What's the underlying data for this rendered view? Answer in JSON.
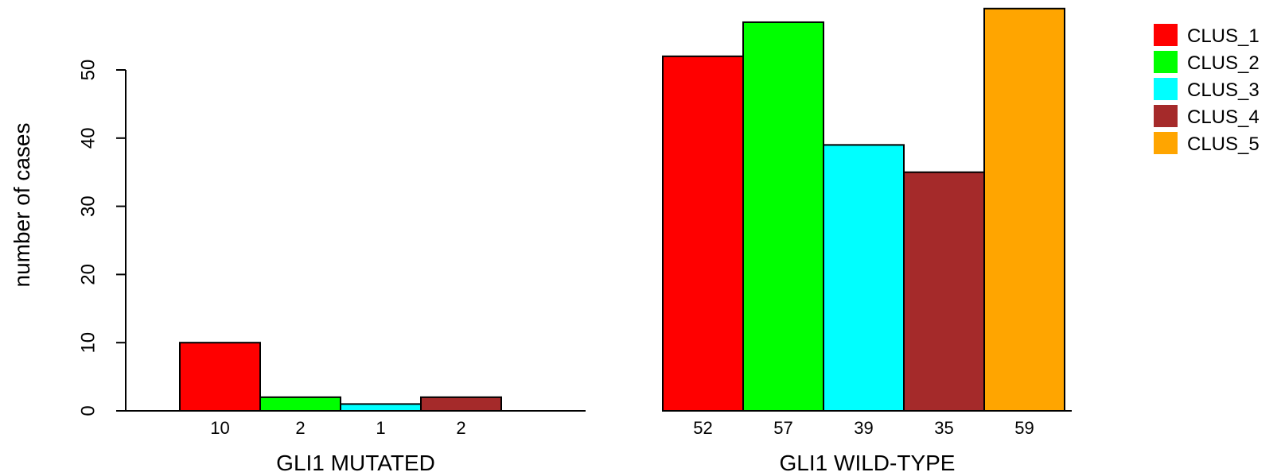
{
  "chart_data": {
    "type": "bar",
    "ylabel": "number of cases",
    "ylim": [
      0,
      60
    ],
    "yticks": [
      0,
      10,
      20,
      30,
      40,
      50
    ],
    "grid": false,
    "legend_position": "top-right",
    "legend": [
      {
        "name": "CLUS_1",
        "color": "#ff0000"
      },
      {
        "name": "CLUS_2",
        "color": "#00ff00"
      },
      {
        "name": "CLUS_3",
        "color": "#00ffff"
      },
      {
        "name": "CLUS_4",
        "color": "#a52a2a"
      },
      {
        "name": "CLUS_5",
        "color": "#ffa500"
      }
    ],
    "groups": [
      {
        "label": "GLI1 MUTATED",
        "values": [
          10,
          2,
          1,
          2,
          0
        ],
        "value_labels": [
          "10",
          "2",
          "1",
          "2",
          ""
        ]
      },
      {
        "label": "GLI1 WILD-TYPE",
        "values": [
          52,
          57,
          39,
          35,
          59
        ],
        "value_labels": [
          "52",
          "57",
          "39",
          "35",
          "59"
        ]
      }
    ]
  }
}
